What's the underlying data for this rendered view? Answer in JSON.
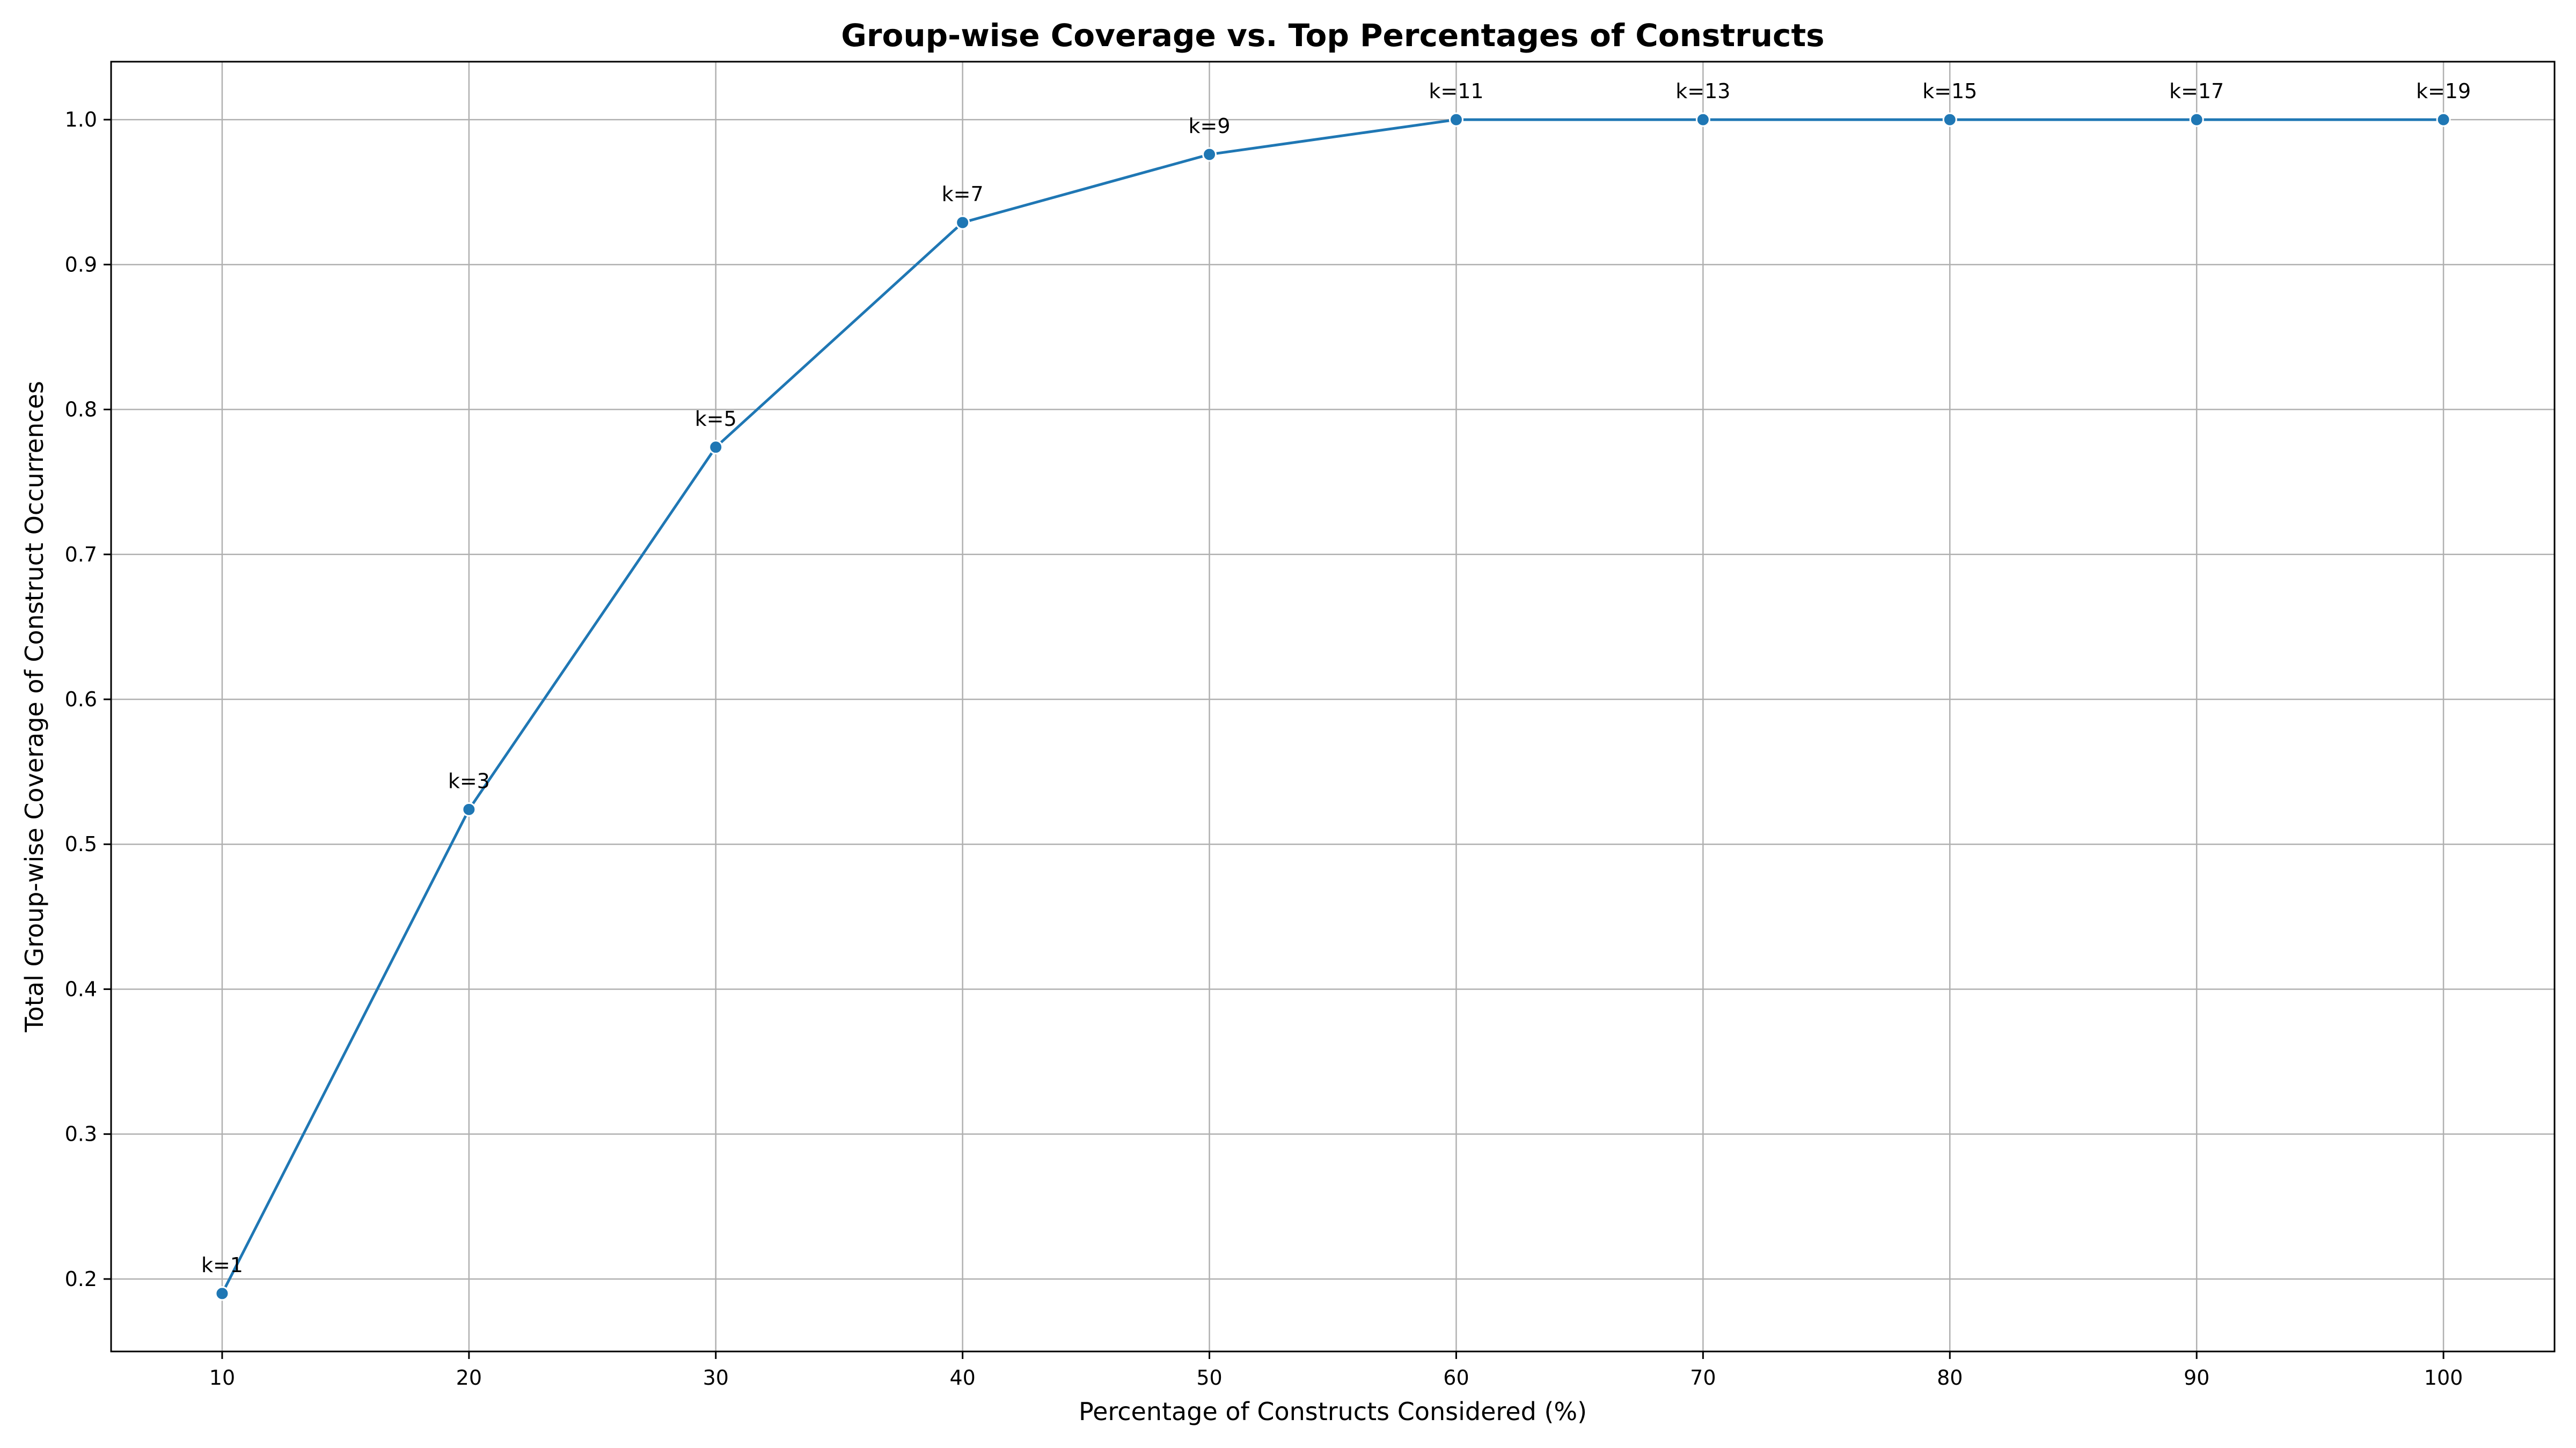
{
  "chart_data": {
    "type": "line",
    "title": "Group-wise Coverage vs. Top Percentages of Constructs",
    "xlabel": "Percentage of Constructs Considered (%)",
    "ylabel": "Total Group-wise Coverage of Construct Occurrences",
    "x": [
      10,
      20,
      30,
      40,
      50,
      60,
      70,
      80,
      90,
      100
    ],
    "series": [
      {
        "values": [
          0.19,
          0.524,
          0.774,
          0.929,
          0.976,
          1.0,
          1.0,
          1.0,
          1.0,
          1.0
        ],
        "color": "#1f77b4"
      }
    ],
    "point_labels": [
      "k=1",
      "k=3",
      "k=5",
      "k=7",
      "k=9",
      "k=11",
      "k=13",
      "k=15",
      "k=17",
      "k=19"
    ],
    "x_ticks": [
      10,
      20,
      30,
      40,
      50,
      60,
      70,
      80,
      90,
      100
    ],
    "y_ticks": [
      "0.2",
      "0.3",
      "0.4",
      "0.5",
      "0.6",
      "0.7",
      "0.8",
      "0.9",
      "1.0"
    ],
    "xlim": [
      5.5,
      104.5
    ],
    "ylim": [
      0.15,
      1.04
    ],
    "grid": true,
    "legend": false
  }
}
